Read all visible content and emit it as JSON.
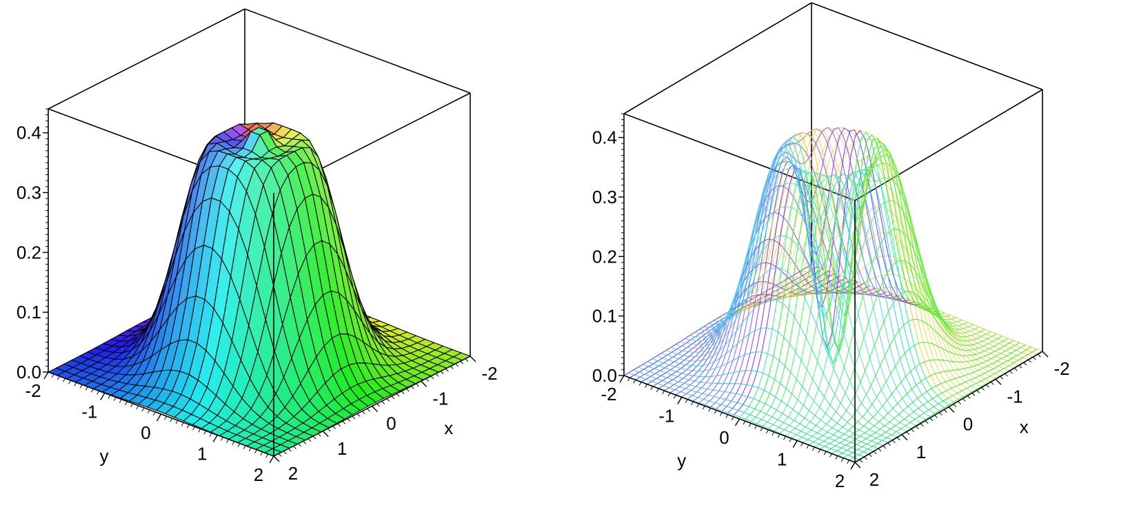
{
  "chart_data": [
    {
      "type": "surface3d",
      "style": "patch",
      "x": {
        "label": "x",
        "range": [
          -2,
          2
        ],
        "ticks": [
          "-2",
          "-1",
          "0",
          "1",
          "2"
        ]
      },
      "y": {
        "label": "y",
        "range": [
          -2,
          2
        ],
        "ticks": [
          "-2",
          "-1",
          "0",
          "1",
          "2"
        ]
      },
      "z": {
        "range": [
          0.0,
          0.44
        ],
        "ticks": [
          "0.0",
          "0.1",
          "0.2",
          "0.3",
          "0.4"
        ]
      },
      "peak_z": 0.44,
      "center_z": 0.4,
      "grid_lines": 25,
      "colors": {
        "low": "#ff4b3c",
        "high": "#7a70ff",
        "mesh": "#000000",
        "box": "#000000"
      }
    },
    {
      "type": "surface3d",
      "style": "wireframe",
      "x": {
        "label": "x",
        "range": [
          -2,
          2
        ],
        "ticks": [
          "-2",
          "-1",
          "0",
          "1",
          "2"
        ]
      },
      "y": {
        "label": "y",
        "range": [
          -2,
          2
        ],
        "ticks": [
          "-2",
          "-1",
          "0",
          "1",
          "2"
        ]
      },
      "z": {
        "range": [
          0.0,
          0.44
        ],
        "ticks": [
          "0.0",
          "0.1",
          "0.2",
          "0.3",
          "0.4"
        ]
      },
      "peak_z": 0.44,
      "center_z": 0.0,
      "grid_lines": 40,
      "colors": {
        "low": "#ff5a4a",
        "high": "#8e7cff",
        "mesh": "hue",
        "box": "#000000"
      }
    }
  ]
}
